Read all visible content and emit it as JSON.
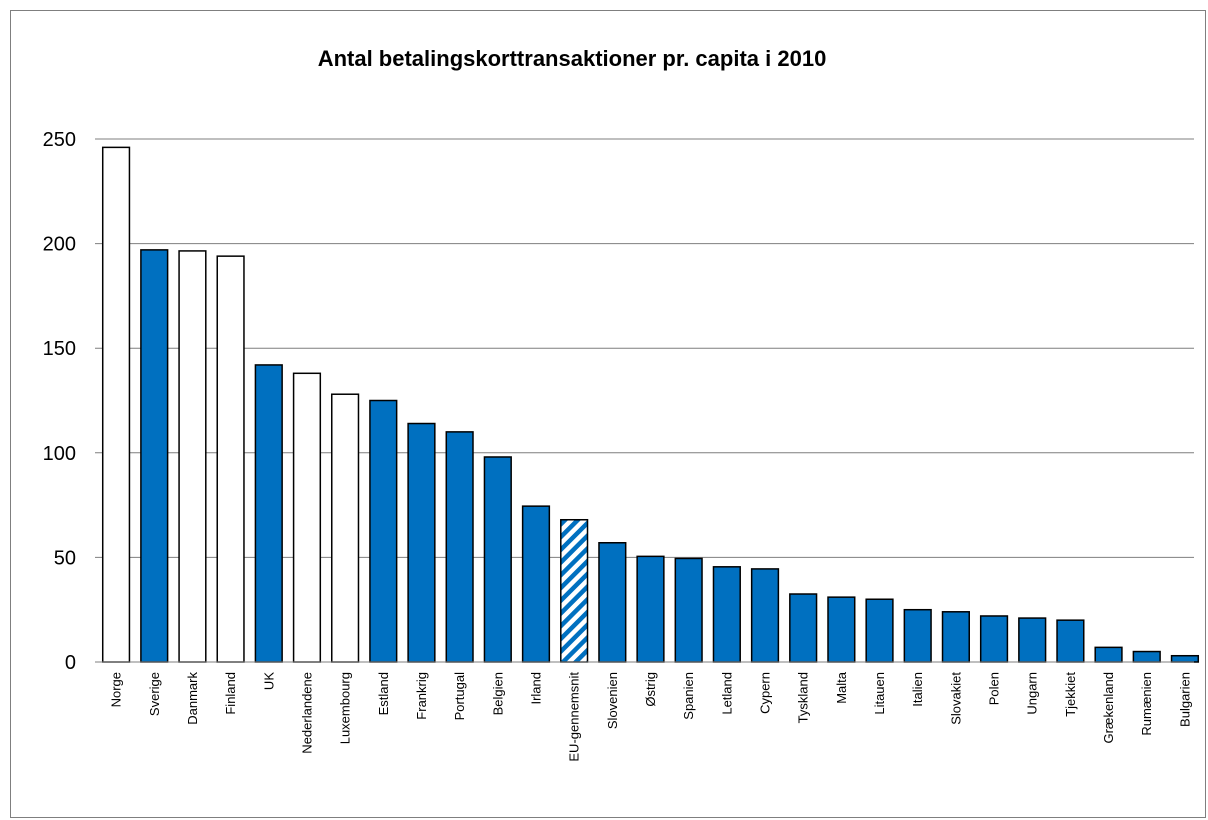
{
  "chart_data": {
    "type": "bar",
    "title": "Antal betalingskorttransaktioner pr. capita i 2010",
    "xlabel": "",
    "ylabel": "",
    "ylim": [
      0,
      250
    ],
    "yticks": [
      "0",
      "50",
      "100",
      "150",
      "200",
      "250"
    ],
    "grid": true,
    "legend": "none",
    "categories": [
      "Norge",
      "Sverige",
      "Danmark",
      "Finland",
      "UK",
      "Nederlandene",
      "Luxembourg",
      "Estland",
      "Frankrig",
      "Portugal",
      "Belgien",
      "Irland",
      "EU-gennemsnit",
      "Slovenien",
      "Østrig",
      "Spanien",
      "Letland",
      "Cypern",
      "Tyskland",
      "Malta",
      "Litauen",
      "Italien",
      "Slovakiet",
      "Polen",
      "Ungarn",
      "Tjekkiet",
      "Grækenland",
      "Rumænien",
      "Bulgarien"
    ],
    "values": [
      246,
      197,
      196.5,
      194,
      142,
      138,
      128,
      125,
      114,
      110,
      98,
      74.5,
      68,
      57,
      50.5,
      49.5,
      45.5,
      44.5,
      32.5,
      31,
      30,
      25,
      24,
      22,
      21,
      20,
      7,
      5,
      3
    ],
    "bar_styles": [
      "white",
      "blue",
      "white",
      "white",
      "blue",
      "white",
      "white",
      "blue",
      "blue",
      "blue",
      "blue",
      "blue",
      "hatched",
      "blue",
      "blue",
      "blue",
      "blue",
      "blue",
      "blue",
      "blue",
      "blue",
      "blue",
      "blue",
      "blue",
      "blue",
      "blue",
      "blue",
      "blue",
      "blue"
    ],
    "colors": {
      "blue": "#0070c0",
      "white": "#ffffff",
      "outline": "#000000",
      "grid": "#7f7f7f"
    }
  }
}
